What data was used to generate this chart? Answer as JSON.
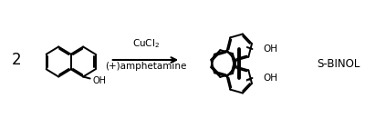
{
  "background_color": "#ffffff",
  "text_color": "#000000",
  "stoich": "2",
  "reagent1": "CuCl$_2$",
  "reagent2": "(+)amphetamine",
  "product_label": "S-BINOL",
  "lw": 1.4,
  "lw_bold": 2.8,
  "figsize": [
    4.0,
    1.41
  ],
  "dpi": 100
}
